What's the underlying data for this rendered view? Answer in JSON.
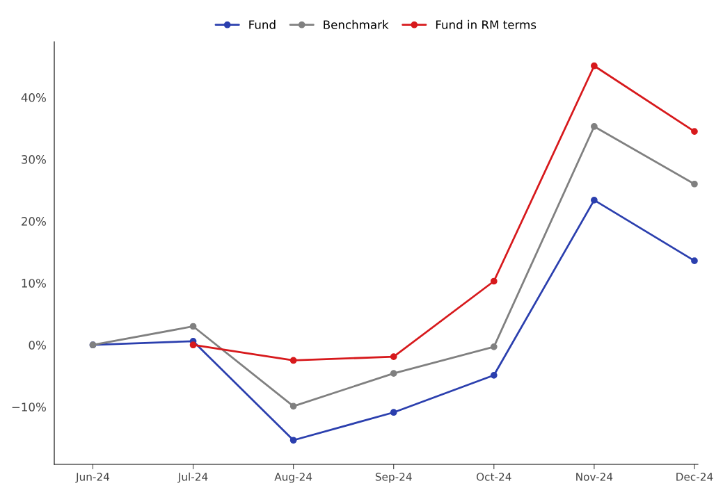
{
  "chart_data": {
    "type": "line",
    "categories": [
      "Jun-24",
      "Jul-24",
      "Aug-24",
      "Sep-24",
      "Oct-24",
      "Nov-24",
      "Dec-24"
    ],
    "series": [
      {
        "name": "Fund",
        "color": "#2b3fae",
        "values": [
          0,
          0.6,
          -15.4,
          -10.9,
          -4.9,
          23.4,
          13.6
        ]
      },
      {
        "name": "Benchmark",
        "color": "#808080",
        "values": [
          0,
          3.0,
          -9.9,
          -4.6,
          -0.3,
          35.3,
          26.0
        ]
      },
      {
        "name": "Fund in RM terms",
        "color": "#d7191c",
        "values": [
          null,
          0,
          -2.5,
          -1.9,
          10.3,
          45.1,
          34.5
        ]
      }
    ],
    "ylim": [
      -19.3,
      49
    ],
    "yticks": [
      {
        "value": -10,
        "label": "−10%"
      },
      {
        "value": 0,
        "label": "0%"
      },
      {
        "value": 10,
        "label": "10%"
      },
      {
        "value": 20,
        "label": "20%"
      },
      {
        "value": 30,
        "label": "30%"
      },
      {
        "value": 40,
        "label": "40%"
      }
    ],
    "legend": "top",
    "grid": false,
    "marker": "circle",
    "line_style": "solid"
  }
}
